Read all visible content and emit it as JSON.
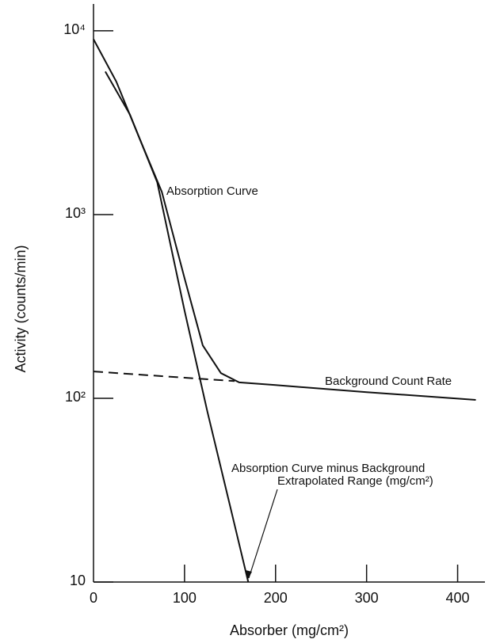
{
  "chart_data": {
    "type": "line",
    "xlabel": "Absorber (mg/cm²)",
    "ylabel": "Activity (counts/min)",
    "xlim": [
      0,
      430
    ],
    "ylim": [
      10,
      14000
    ],
    "ylog": true,
    "xticks": [
      0,
      100,
      200,
      300,
      400
    ],
    "yticks": [
      10,
      {
        "value": 100,
        "label": "10²"
      },
      {
        "value": 1000,
        "label": "10³"
      },
      {
        "value": 10000,
        "label": "10⁴"
      }
    ],
    "series": [
      {
        "name": "Absorption Curve",
        "color": "#111111",
        "dash": false,
        "x": [
          0,
          25,
          50,
          75,
          100,
          120,
          140,
          160,
          200,
          300,
          420
        ],
        "values": [
          9000,
          5300,
          2640,
          1330,
          450,
          194,
          137,
          122,
          118,
          108,
          98
        ]
      },
      {
        "name": "Background Count Rate",
        "color": "#111111",
        "dash": true,
        "x": [
          0,
          155
        ],
        "values": [
          140,
          124
        ]
      },
      {
        "name": "Absorption Curve minus Background",
        "color": "#111111",
        "dash": false,
        "x": [
          13,
          40,
          70,
          100,
          125,
          150,
          170
        ],
        "values": [
          6000,
          3500,
          1500,
          300,
          85,
          26,
          10
        ]
      }
    ],
    "annotations": [
      "Extrapolated Range (mg/cm²)"
    ]
  }
}
